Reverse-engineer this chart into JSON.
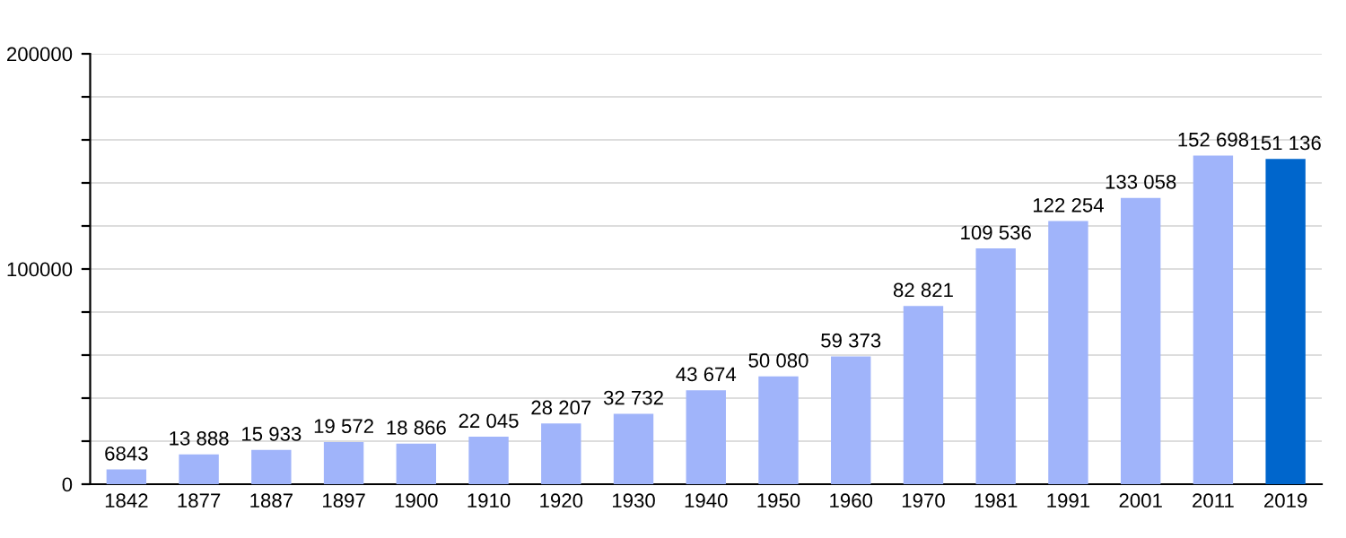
{
  "chart_data": {
    "type": "bar",
    "categories": [
      "1842",
      "1877",
      "1887",
      "1897",
      "1900",
      "1910",
      "1920",
      "1930",
      "1940",
      "1950",
      "1960",
      "1970",
      "1981",
      "1991",
      "2001",
      "2011",
      "2019"
    ],
    "values": [
      6843,
      13888,
      15933,
      19572,
      18866,
      22045,
      28207,
      32732,
      43674,
      50080,
      59373,
      82821,
      109536,
      122254,
      133058,
      152698,
      151136
    ],
    "value_labels": [
      "6843",
      "13 888",
      "15 933",
      "19 572",
      "18 866",
      "22 045",
      "28 207",
      "32 732",
      "43 674",
      "50 080",
      "59 373",
      "82 821",
      "109 536",
      "122 254",
      "133 058",
      "152 698",
      "151 136"
    ],
    "colors": [
      "#a0b4fa",
      "#a0b4fa",
      "#a0b4fa",
      "#a0b4fa",
      "#a0b4fa",
      "#a0b4fa",
      "#a0b4fa",
      "#a0b4fa",
      "#a0b4fa",
      "#a0b4fa",
      "#a0b4fa",
      "#a0b4fa",
      "#a0b4fa",
      "#a0b4fa",
      "#a0b4fa",
      "#a0b4fa",
      "#0066cc"
    ],
    "ylim": [
      0,
      200000
    ],
    "yticks": [
      0,
      {
        "value": 20000,
        "label": null
      },
      {
        "value": 40000,
        "label": null
      },
      {
        "value": 60000,
        "label": null
      },
      {
        "value": 80000,
        "label": null
      },
      100000,
      {
        "value": 120000,
        "label": null
      },
      {
        "value": 140000,
        "label": null
      },
      {
        "value": 160000,
        "label": null
      },
      {
        "value": 180000,
        "label": null
      },
      200000
    ],
    "grid": "y"
  }
}
